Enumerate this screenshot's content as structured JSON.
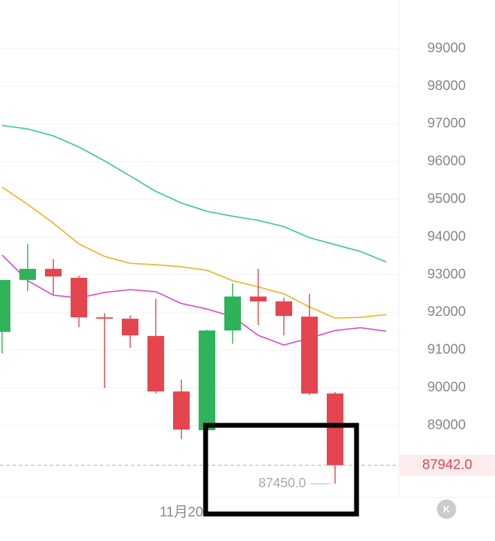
{
  "chart_data": {
    "type": "candlestick",
    "categories": [
      null,
      null,
      null,
      null,
      null,
      null,
      null,
      "11月20",
      null,
      null,
      null,
      null,
      null,
      null,
      null,
      null
    ],
    "open": [
      91482,
      92860,
      93155,
      92916,
      91868,
      91831,
      91372,
      89901,
      88872,
      91519,
      92420,
      92291,
      91886,
      89846,
      null,
      null
    ],
    "high": [
      92860,
      93817,
      93412,
      92971,
      91978,
      91923,
      92364,
      90214,
      91537,
      92769,
      93155,
      92383,
      92493,
      89883,
      null,
      null
    ],
    "low": [
      90912,
      92566,
      92475,
      91610,
      89993,
      91059,
      89846,
      88633,
      88872,
      91169,
      91666,
      91390,
      89809,
      87450,
      null,
      null
    ],
    "close": [
      92860,
      93155,
      92952,
      91868,
      91831,
      91390,
      89901,
      88890,
      91519,
      92420,
      92291,
      91905,
      89846,
      87942,
      null,
      null
    ],
    "up_color": "#2fb35a",
    "down_color": "#e5454f",
    "series": [
      {
        "color": "#3cc9a5",
        "values": [
          96960,
          96868,
          96684,
          96390,
          96022,
          95618,
          95213,
          94901,
          94680,
          94551,
          94441,
          94276,
          93982,
          93798,
          93614,
          93338
        ]
      },
      {
        "color": "#f0b429",
        "values": [
          95324,
          94864,
          94368,
          93817,
          93485,
          93302,
          93265,
          93210,
          93118,
          92842,
          92677,
          92493,
          92144,
          91849,
          91868,
          91941
        ]
      },
      {
        "color": "#d94fcf",
        "values": [
          93522,
          92842,
          92456,
          92383,
          92530,
          92603,
          92548,
          92235,
          92088,
          91886,
          91390,
          91133,
          91316,
          91519,
          91592,
          91500
        ]
      }
    ],
    "ylim": [
      87090,
      100290
    ],
    "yticks": [
      89000,
      90000,
      91000,
      92000,
      93000,
      94000,
      95000,
      96000,
      97000,
      98000,
      99000
    ],
    "grid": true,
    "last_price": {
      "value": 87942,
      "label": "87942.0"
    },
    "low_marker": {
      "value": 87450,
      "label": "87450.0"
    },
    "icon_label": "K"
  }
}
